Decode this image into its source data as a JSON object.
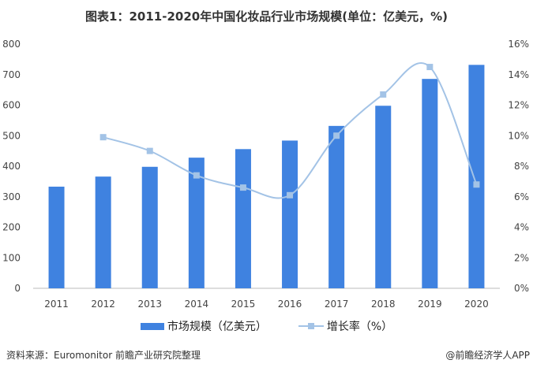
{
  "chart_data": {
    "type": "bar+line",
    "title": "图表1：2011-2020年中国化妆品行业市场规模(单位：亿美元，%)",
    "categories": [
      "2011",
      "2012",
      "2013",
      "2014",
      "2015",
      "2016",
      "2017",
      "2018",
      "2019",
      "2020"
    ],
    "series": [
      {
        "name": "市场规模（亿美元）",
        "type": "bar",
        "axis": "left",
        "color": "#3f82e0",
        "values": [
          333,
          366,
          398,
          428,
          456,
          484,
          532,
          598,
          686,
          732
        ]
      },
      {
        "name": "增长率（%）",
        "type": "line",
        "axis": "right",
        "color": "#a3c3e6",
        "values": [
          null,
          9.9,
          9.0,
          7.4,
          6.6,
          6.1,
          10.0,
          12.7,
          14.5,
          6.8
        ]
      }
    ],
    "ylim_left": [
      0,
      800
    ],
    "yticks_left": [
      "0",
      "100",
      "200",
      "300",
      "400",
      "500",
      "600",
      "700",
      "800"
    ],
    "ylim_right": [
      0,
      16
    ],
    "yticks_right": [
      "0%",
      "2%",
      "4%",
      "6%",
      "8%",
      "10%",
      "12%",
      "14%",
      "16%"
    ],
    "legend": "bottom",
    "grid": false
  },
  "source": "资料来源：Euromonitor 前瞻产业研究院整理",
  "credit": "@前瞻经济学人APP"
}
